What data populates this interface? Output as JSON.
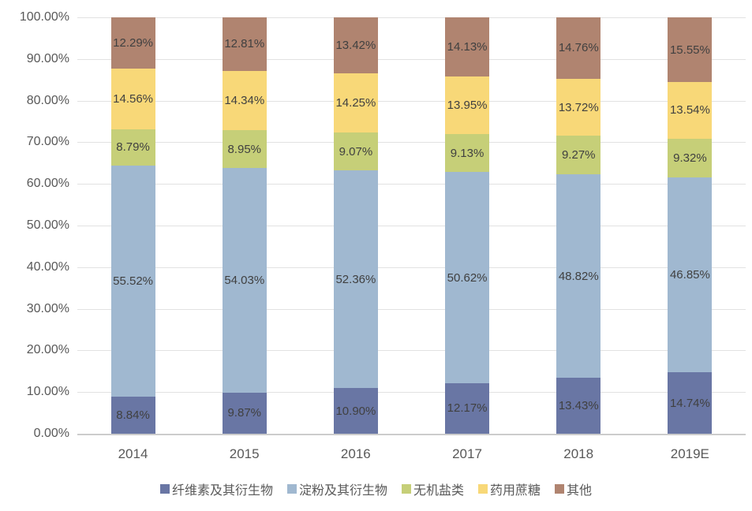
{
  "chart_data": {
    "type": "bar",
    "stacked": true,
    "stacked_100_percent": true,
    "categories": [
      "2014",
      "2015",
      "2016",
      "2017",
      "2018",
      "2019E"
    ],
    "series": [
      {
        "name": "纤维素及其衍生物",
        "color": "#6976a4",
        "values": [
          8.84,
          9.87,
          10.9,
          12.17,
          13.43,
          14.74
        ]
      },
      {
        "name": "淀粉及其衍生物",
        "color": "#a0b8d0",
        "values": [
          55.52,
          54.03,
          52.36,
          50.62,
          48.82,
          46.85
        ]
      },
      {
        "name": "无机盐类",
        "color": "#c6cf78",
        "values": [
          8.79,
          8.95,
          9.07,
          9.13,
          9.27,
          9.32
        ]
      },
      {
        "name": "药用蔗糖",
        "color": "#f8d878",
        "values": [
          14.56,
          14.34,
          14.25,
          13.95,
          13.72,
          13.54
        ]
      },
      {
        "name": "其他",
        "color": "#b08470",
        "values": [
          12.29,
          12.81,
          13.42,
          14.13,
          14.76,
          15.55
        ]
      }
    ],
    "y_ticks": [
      "100.00%",
      "90.00%",
      "80.00%",
      "70.00%",
      "60.00%",
      "50.00%",
      "40.00%",
      "30.00%",
      "20.00%",
      "10.00%",
      "0.00%"
    ],
    "ylim": [
      0,
      100
    ],
    "value_suffix": "%",
    "value_decimals": 2,
    "grid": true,
    "legend_position": "bottom",
    "title": "",
    "xlabel": "",
    "ylabel": ""
  },
  "colors": {
    "grid_line": "#e2e2e2",
    "axis_line": "#cccccc",
    "tick_text": "#595959",
    "data_label_text": "#404040",
    "background": "#ffffff"
  }
}
